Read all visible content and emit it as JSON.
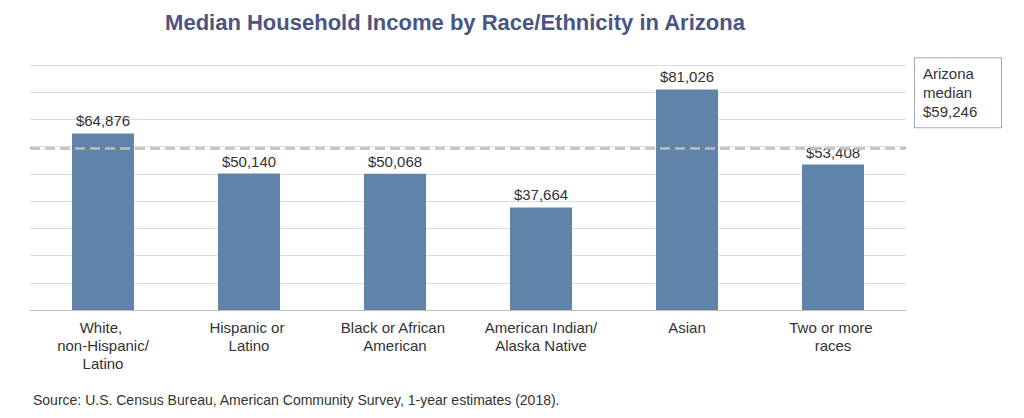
{
  "chart_data": {
    "type": "bar",
    "title": "Median Household Income by Race/Ethnicity in Arizona",
    "categories": [
      "White, non-Hispanic/Latino",
      "Hispanic or Latino",
      "Black or African American",
      "American Indian/Alaska Native",
      "Asian",
      "Two or more races"
    ],
    "values": [
      64876,
      50140,
      50068,
      37664,
      81026,
      53408
    ],
    "value_labels": [
      "$64,876",
      "$50,140",
      "$50,068",
      "$37,664",
      "$81,026",
      "$53,408"
    ],
    "color": "#6084a9",
    "ylim": [
      0,
      90000
    ],
    "yticks": [
      0,
      10000,
      20000,
      30000,
      40000,
      50000,
      60000,
      70000,
      80000,
      90000
    ],
    "grid": true,
    "tick_labels": "x",
    "data_labels": true,
    "reference_line": {
      "value": 59246,
      "label": "Arizona median $59,246"
    },
    "source": "Source: U.S. Census Bureau, American Community Survey, 1-year estimates (2018)."
  }
}
